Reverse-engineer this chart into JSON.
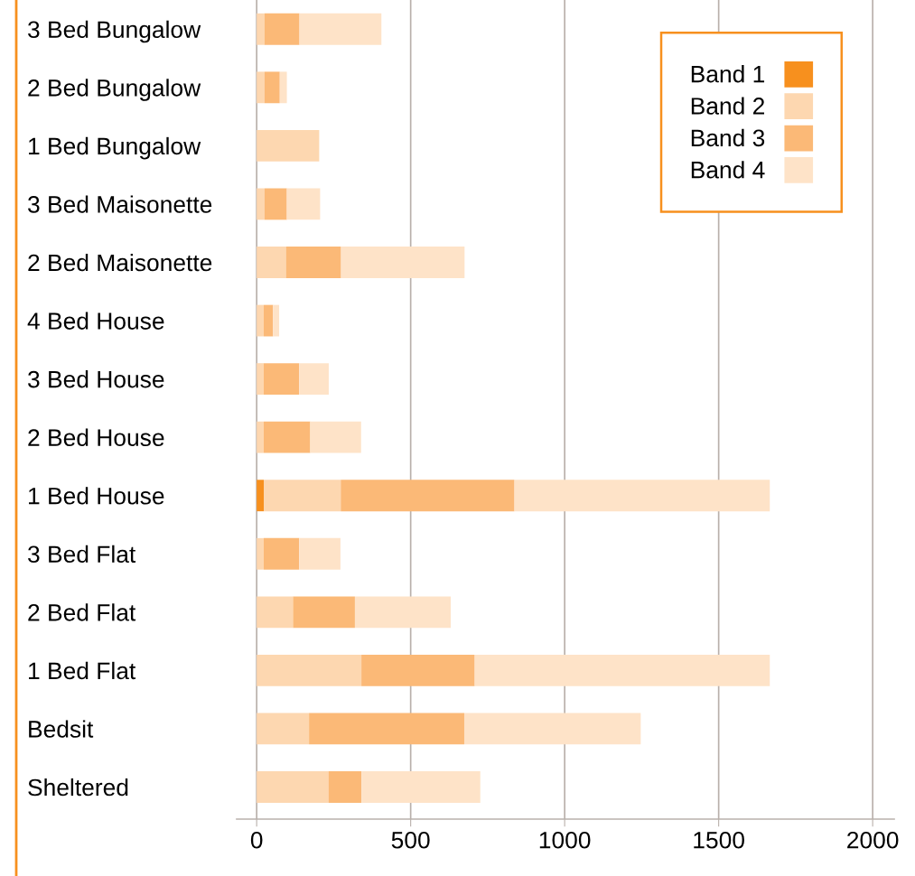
{
  "chart_data": {
    "type": "bar",
    "orientation": "horizontal",
    "stacked": true,
    "categories": [
      "3 Bed Bungalow",
      "2 Bed Bungalow",
      "1 Bed Bungalow",
      "3 Bed Maisonette",
      "2 Bed Maisonette",
      "4 Bed House",
      "3 Bed House",
      "2 Bed House",
      "1 Bed House",
      "3 Bed Flat",
      "2 Bed Flat",
      "1 Bed Flat",
      "Bedsit",
      "Sheltered"
    ],
    "series": [
      {
        "name": "Band 1",
        "color": "#f7901e",
        "values": [
          0,
          0,
          0,
          0,
          0,
          0,
          0,
          0,
          23,
          0,
          0,
          0,
          0,
          0
        ]
      },
      {
        "name": "Band 2",
        "color": "#fdd7b0",
        "values": [
          25,
          25,
          203,
          25,
          95,
          23,
          23,
          23,
          250,
          23,
          118,
          340,
          170,
          233
        ]
      },
      {
        "name": "Band 3",
        "color": "#fbb977",
        "values": [
          114,
          50,
          0,
          73,
          179,
          30,
          115,
          151,
          564,
          115,
          201,
          368,
          504,
          107
        ]
      },
      {
        "name": "Band 4",
        "color": "#fee3c8",
        "values": [
          266,
          23,
          0,
          108,
          401,
          20,
          96,
          165,
          829,
          134,
          311,
          958,
          573,
          386
        ]
      }
    ],
    "xlim": [
      -65,
      2070
    ],
    "xticks": [
      0,
      500,
      1000,
      1500,
      2000
    ],
    "grid": "x",
    "legend": "top right"
  }
}
